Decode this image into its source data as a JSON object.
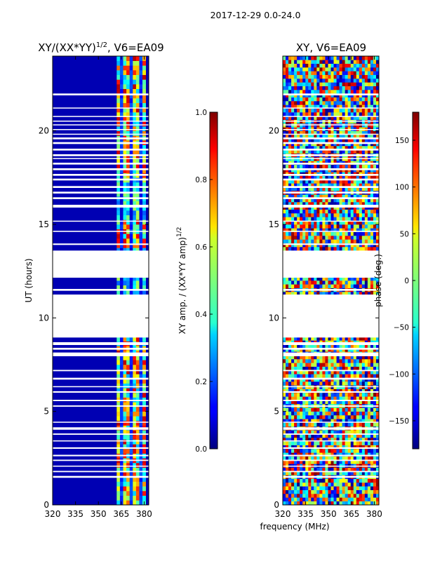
{
  "chart_data": [
    {
      "type": "heatmap",
      "suptitle": "2017-12-29 0.0-24.0",
      "title_main": "XY/(XX*YY)",
      "title_sup": "1/2",
      "title_tail": ", V6=EA09",
      "xlabel": "",
      "ylabel": "UT (hours)",
      "xlim": [
        320,
        383
      ],
      "ylim": [
        0,
        24
      ],
      "xticks": [
        320,
        335,
        350,
        365,
        380
      ],
      "yticks": [
        0,
        5,
        10,
        15,
        20
      ],
      "colorbar": {
        "colormap": "jet",
        "range": [
          0.0,
          1.0
        ],
        "ticks": [
          "0.0",
          "0.2",
          "0.4",
          "0.6",
          "0.8",
          "1.0"
        ],
        "label_main": "XY amp. / (XX*YY amp)",
        "label_sup": "1/2"
      },
      "bright_channel_band_mhz": [
        362,
        381
      ],
      "low_value_level": 0.05,
      "high_value_range": [
        0.3,
        0.95
      ]
    },
    {
      "type": "heatmap",
      "title": "XY, V6=EA09",
      "xlabel": "frequency (MHz)",
      "ylabel": "",
      "xlim": [
        320,
        383
      ],
      "ylim": [
        0,
        24
      ],
      "xticks": [
        320,
        335,
        350,
        365,
        380
      ],
      "yticks": [
        0,
        5,
        10,
        15,
        20
      ],
      "colorbar": {
        "colormap": "jet",
        "range": [
          -180,
          180
        ],
        "ticks": [
          "150",
          "100",
          "50",
          "0",
          "−50",
          "−100",
          "−150"
        ],
        "tick_values": [
          150,
          100,
          50,
          0,
          -50,
          -100,
          -150
        ],
        "label": "phase (deg.)"
      },
      "value_range_deg": [
        -180,
        180
      ]
    }
  ],
  "flagged_ut_hours": [
    [
      1.45,
      1.55
    ],
    [
      1.75,
      1.82
    ],
    [
      2.05,
      2.1
    ],
    [
      2.35,
      2.42
    ],
    [
      2.6,
      2.68
    ],
    [
      3.0,
      3.08
    ],
    [
      3.4,
      3.45
    ],
    [
      3.75,
      3.82
    ],
    [
      4.02,
      4.15
    ],
    [
      4.4,
      4.45
    ],
    [
      5.25,
      5.32
    ],
    [
      5.55,
      5.62
    ],
    [
      6.0,
      6.08
    ],
    [
      6.3,
      6.35
    ],
    [
      6.7,
      6.8
    ],
    [
      7.15,
      7.22
    ],
    [
      7.95,
      8.15
    ],
    [
      8.3,
      8.4
    ],
    [
      8.55,
      8.7
    ],
    [
      8.95,
      11.25
    ],
    [
      11.45,
      11.55
    ],
    [
      12.15,
      13.6
    ],
    [
      13.9,
      13.98
    ],
    [
      14.6,
      14.66
    ],
    [
      15.15,
      15.2
    ],
    [
      15.9,
      16.05
    ],
    [
      16.35,
      16.45
    ],
    [
      16.65,
      16.75
    ],
    [
      16.95,
      17.05
    ],
    [
      17.35,
      17.45
    ],
    [
      17.6,
      17.7
    ],
    [
      17.9,
      18.0
    ],
    [
      18.2,
      18.3
    ],
    [
      18.5,
      18.55
    ],
    [
      18.65,
      18.75
    ],
    [
      18.95,
      19.05
    ],
    [
      19.3,
      19.4
    ],
    [
      19.55,
      19.65
    ],
    [
      19.8,
      19.85
    ],
    [
      20.05,
      20.1
    ],
    [
      20.3,
      20.35
    ],
    [
      20.5,
      20.55
    ],
    [
      20.75,
      20.8
    ],
    [
      21.2,
      21.25
    ],
    [
      21.9,
      22.0
    ]
  ]
}
